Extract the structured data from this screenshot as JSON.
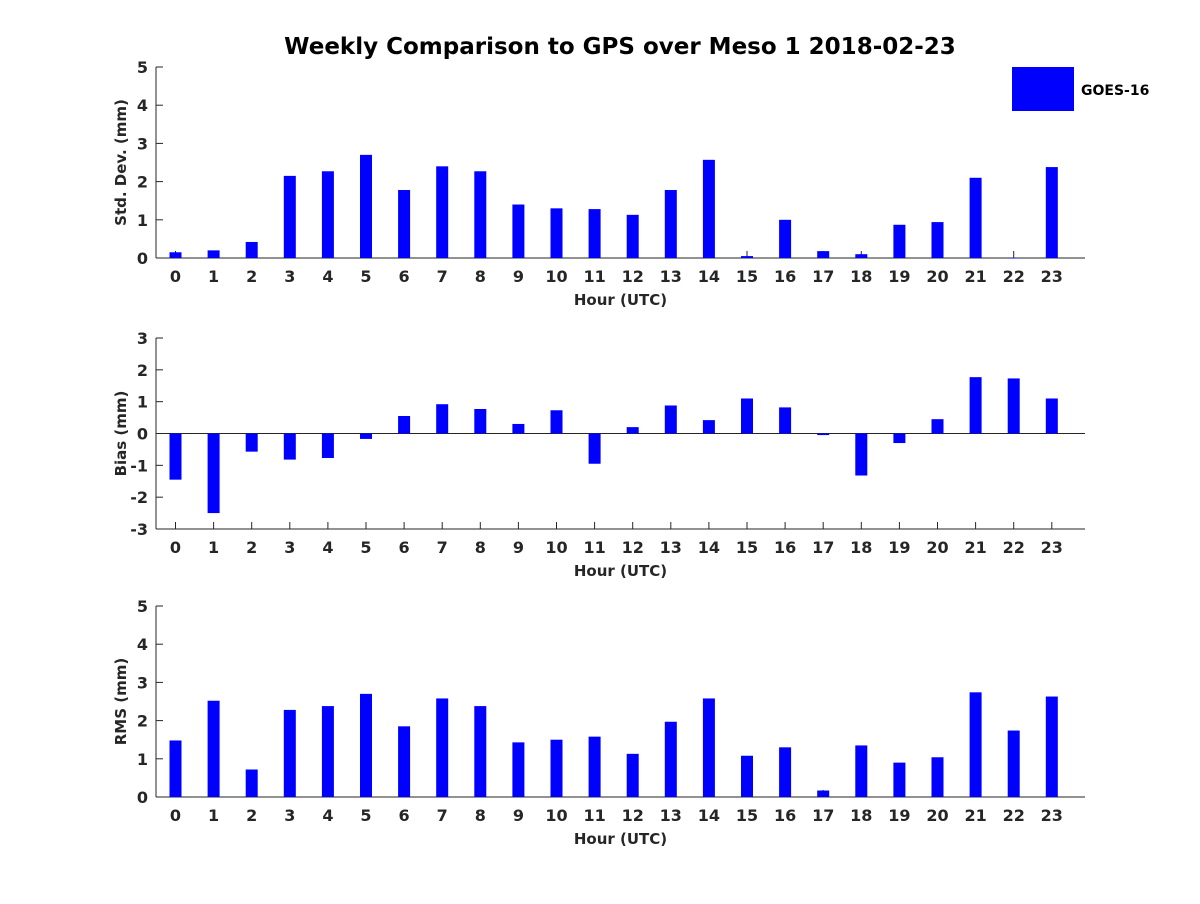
{
  "title": "Weekly Comparison to GPS over Meso 1 2018-02-23",
  "legend": {
    "label": "GOES-16",
    "color": "#0000ff"
  },
  "colors": {
    "bar": "#0000ff",
    "axis": "#262626",
    "text": "#000000"
  },
  "chart_data": [
    {
      "type": "bar",
      "name": "std-dev",
      "series_name": "GOES-16",
      "categories": [
        "0",
        "1",
        "2",
        "3",
        "4",
        "5",
        "6",
        "7",
        "8",
        "9",
        "10",
        "11",
        "12",
        "13",
        "14",
        "15",
        "16",
        "17",
        "18",
        "19",
        "20",
        "21",
        "22",
        "23"
      ],
      "values": [
        0.15,
        0.2,
        0.42,
        2.15,
        2.27,
        2.7,
        1.78,
        2.4,
        2.27,
        1.4,
        1.3,
        1.28,
        1.13,
        1.78,
        2.57,
        0.05,
        1.0,
        0.18,
        0.1,
        0.87,
        0.94,
        2.1,
        0.0,
        2.38
      ],
      "ylim": [
        0,
        5
      ],
      "yticks": [
        0,
        1,
        2,
        3,
        4,
        5
      ],
      "xlabel": "Hour (UTC)",
      "ylabel": "Std. Dev. (mm)"
    },
    {
      "type": "bar",
      "name": "bias",
      "series_name": "GOES-16",
      "categories": [
        "0",
        "1",
        "2",
        "3",
        "4",
        "5",
        "6",
        "7",
        "8",
        "9",
        "10",
        "11",
        "12",
        "13",
        "14",
        "15",
        "16",
        "17",
        "18",
        "19",
        "20",
        "21",
        "22",
        "23"
      ],
      "values": [
        -1.45,
        -2.5,
        -0.57,
        -0.82,
        -0.77,
        -0.17,
        0.55,
        0.92,
        0.77,
        0.3,
        0.73,
        -0.95,
        0.2,
        0.88,
        0.42,
        1.1,
        0.82,
        -0.05,
        -1.32,
        -0.3,
        0.45,
        1.77,
        1.73,
        1.1
      ],
      "ylim": [
        -3,
        3
      ],
      "yticks": [
        -3,
        -2,
        -1,
        0,
        1,
        2,
        3
      ],
      "xlabel": "Hour (UTC)",
      "ylabel": "Bias (mm)"
    },
    {
      "type": "bar",
      "name": "rms",
      "series_name": "GOES-16",
      "categories": [
        "0",
        "1",
        "2",
        "3",
        "4",
        "5",
        "6",
        "7",
        "8",
        "9",
        "10",
        "11",
        "12",
        "13",
        "14",
        "15",
        "16",
        "17",
        "18",
        "19",
        "20",
        "21",
        "22",
        "23"
      ],
      "values": [
        1.48,
        2.52,
        0.72,
        2.28,
        2.38,
        2.7,
        1.85,
        2.58,
        2.38,
        1.43,
        1.5,
        1.58,
        1.13,
        1.97,
        2.58,
        1.08,
        1.3,
        0.17,
        1.35,
        0.9,
        1.04,
        2.74,
        1.74,
        2.63
      ],
      "ylim": [
        0,
        5
      ],
      "yticks": [
        0,
        1,
        2,
        3,
        4,
        5
      ],
      "xlabel": "Hour (UTC)",
      "ylabel": "RMS (mm)"
    }
  ]
}
